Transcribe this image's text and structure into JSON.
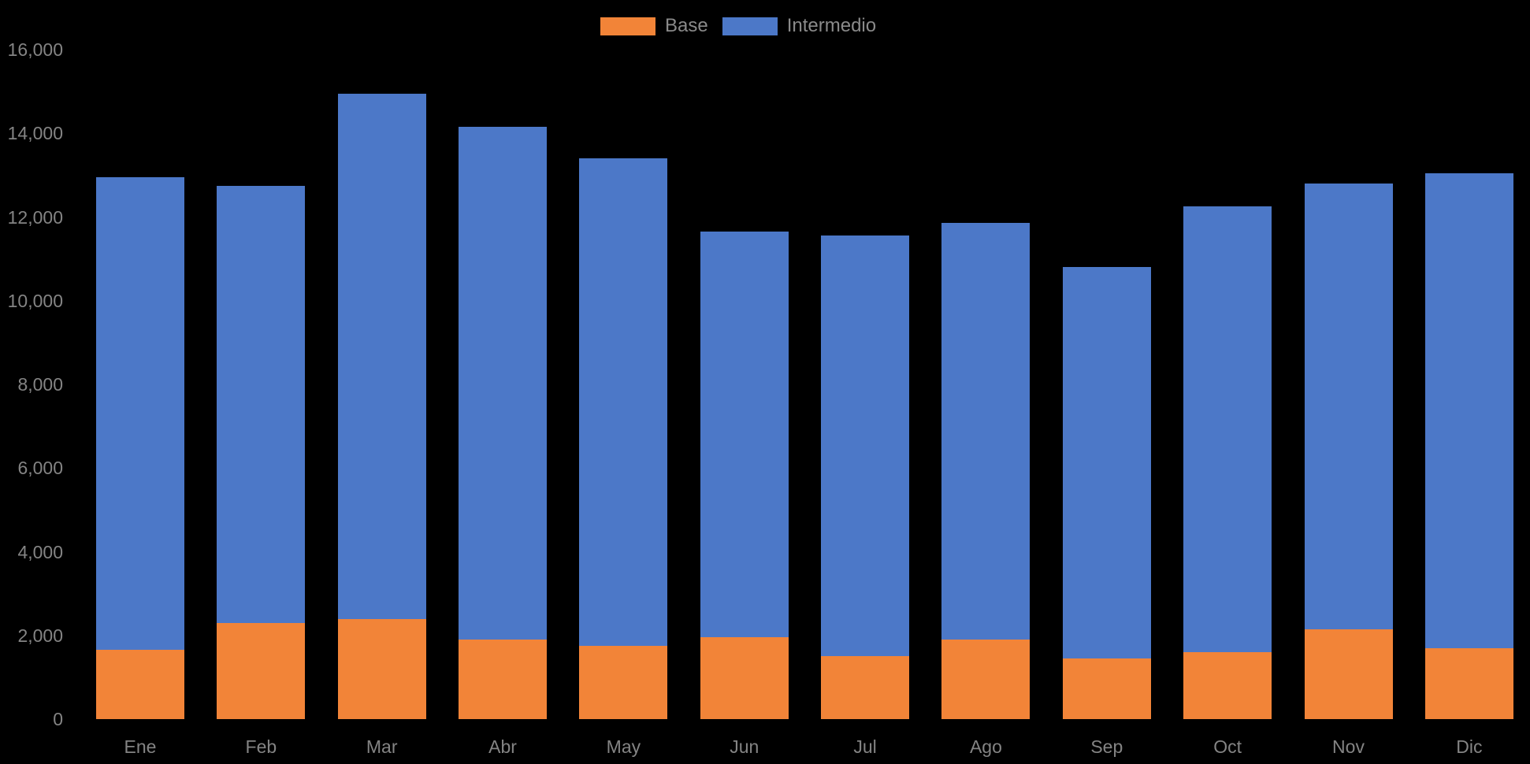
{
  "page": {
    "background": "#000000",
    "text_color": "#848484"
  },
  "legend": {
    "items": [
      {
        "label": "Base",
        "color": "#F28438"
      },
      {
        "label": "Intermedio",
        "color": "#4C78C8"
      }
    ]
  },
  "chart_data": {
    "type": "bar",
    "stacked": true,
    "title": "",
    "xlabel": "",
    "ylabel": "",
    "categories": [
      "Ene",
      "Feb",
      "Mar",
      "Abr",
      "May",
      "Jun",
      "Jul",
      "Ago",
      "Sep",
      "Oct",
      "Nov",
      "Dic"
    ],
    "series": [
      {
        "name": "Base",
        "color": "#F28438",
        "values": [
          1650,
          2300,
          2400,
          1900,
          1750,
          1950,
          1500,
          1900,
          1450,
          1600,
          2150,
          1700
        ]
      },
      {
        "name": "Intermedio",
        "color": "#4C78C8",
        "values": [
          11300,
          10450,
          12550,
          12250,
          11650,
          9700,
          10050,
          9950,
          9350,
          10650,
          10650,
          11350
        ]
      }
    ],
    "totals": [
      12950,
      12750,
      14950,
      14150,
      13400,
      11650,
      11550,
      11850,
      10800,
      12250,
      12800,
      13050
    ],
    "ylim": [
      0,
      16000
    ],
    "ytick_step": 2000,
    "ytick_labels": [
      "0",
      "2,000",
      "4,000",
      "6,000",
      "8,000",
      "10,000",
      "12,000",
      "14,000",
      "16,000"
    ],
    "grid": false,
    "legend_position": "top-center",
    "background": "#000000"
  }
}
